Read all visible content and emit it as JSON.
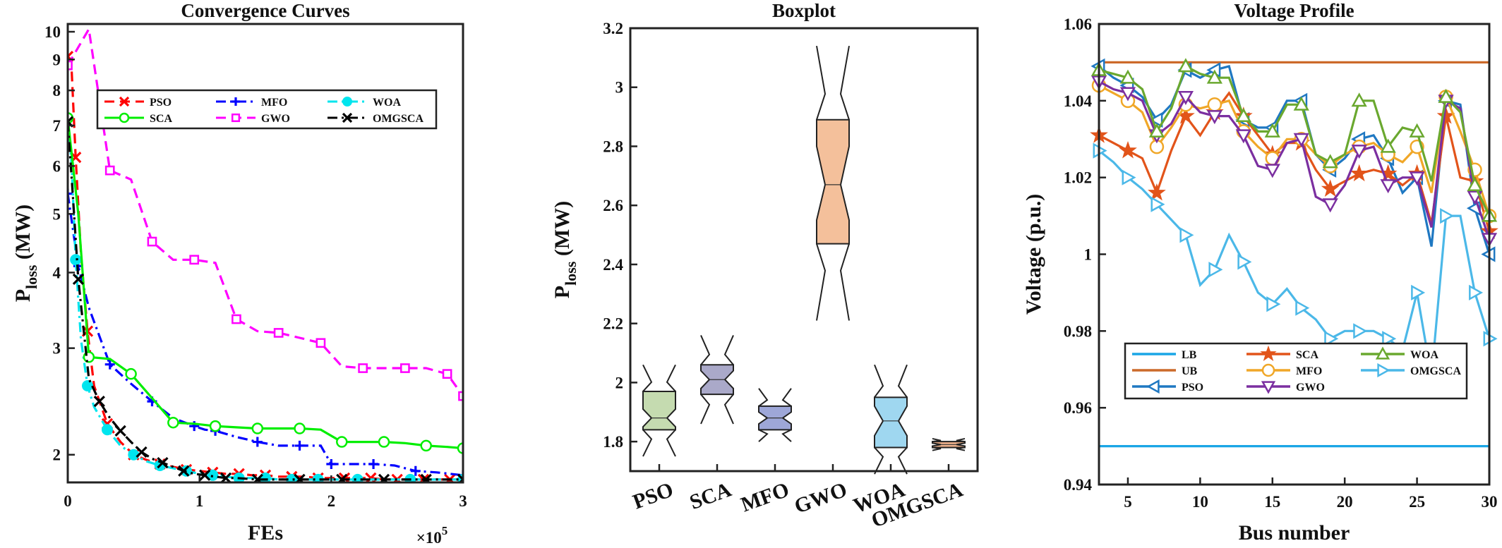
{
  "chart_data": [
    {
      "id": "conv",
      "type": "line",
      "title": "Convergence Curves",
      "xlabel": "FEs",
      "ylabel_main": "P",
      "ylabel_sub": "loss",
      "ylabel_unit": " (MW)",
      "x_exponent_base": "×10",
      "x_exponent_power": "5",
      "yscale": "log",
      "xlim": [
        0,
        3
      ],
      "ylim": [
        1.8,
        10.3
      ],
      "xticks": [
        0,
        1,
        2,
        3
      ],
      "xtick_labels": [
        "0",
        "1",
        "2",
        "3"
      ],
      "yticks": [
        2,
        3,
        4,
        5,
        6,
        7,
        8,
        9,
        10
      ],
      "ytick_labels": [
        "2",
        "3",
        "4",
        "5",
        "6",
        "7",
        "8",
        "9",
        "10"
      ],
      "legend_position": "top",
      "series": [
        {
          "name": "PSO",
          "color": "#ff0000",
          "dash": "dash",
          "marker": "x",
          "x": [
            0,
            0.03,
            0.06,
            0.1,
            0.15,
            0.2,
            0.3,
            0.4,
            0.5,
            0.6,
            0.7,
            0.8,
            0.9,
            1.0,
            1.1,
            1.2,
            1.3,
            1.4,
            1.5,
            1.6,
            1.7,
            1.8,
            1.9,
            2.0,
            2.1,
            2.2,
            2.3,
            2.4,
            2.5,
            2.6,
            2.7,
            2.8,
            2.9,
            3.0
          ],
          "y": [
            9.1,
            8.6,
            6.2,
            4.3,
            3.2,
            2.6,
            2.25,
            2.1,
            2.0,
            1.96,
            1.93,
            1.91,
            1.89,
            1.88,
            1.87,
            1.86,
            1.86,
            1.85,
            1.85,
            1.84,
            1.84,
            1.84,
            1.83,
            1.83,
            1.83,
            1.83,
            1.83,
            1.82,
            1.82,
            1.82,
            1.82,
            1.82,
            1.82,
            1.82
          ]
        },
        {
          "name": "MFO",
          "color": "#0000ff",
          "dash": "dashdot",
          "marker": "plus",
          "x": [
            0,
            0.04,
            0.08,
            0.16,
            0.32,
            0.48,
            0.64,
            0.8,
            0.96,
            1.04,
            1.12,
            1.28,
            1.44,
            1.6,
            1.76,
            1.92,
            2.0,
            2.16,
            2.32,
            2.48,
            2.64,
            2.8,
            3.0
          ],
          "y": [
            5.4,
            4.7,
            4.1,
            3.5,
            2.82,
            2.62,
            2.45,
            2.3,
            2.23,
            2.2,
            2.19,
            2.14,
            2.1,
            2.07,
            2.07,
            2.07,
            1.93,
            1.93,
            1.93,
            1.92,
            1.88,
            1.87,
            1.85
          ]
        },
        {
          "name": "WOA",
          "color": "#00e5ee",
          "dash": "dashdot",
          "marker": "circle",
          "x": [
            0,
            0.03,
            0.06,
            0.1,
            0.15,
            0.2,
            0.3,
            0.4,
            0.5,
            0.6,
            0.7,
            0.8,
            0.9,
            1.0,
            1.1,
            1.2,
            1.3,
            1.4,
            1.5,
            1.6,
            1.7,
            1.8,
            1.9,
            2.0,
            2.2,
            2.4,
            2.6,
            2.8,
            3.0
          ],
          "y": [
            7.2,
            6.0,
            4.2,
            3.1,
            2.6,
            2.4,
            2.2,
            2.07,
            2.0,
            1.95,
            1.92,
            1.9,
            1.88,
            1.86,
            1.85,
            1.84,
            1.83,
            1.83,
            1.83,
            1.82,
            1.82,
            1.82,
            1.82,
            1.82,
            1.82,
            1.82,
            1.82,
            1.82,
            1.82
          ]
        },
        {
          "name": "SCA",
          "color": "#00ee00",
          "dash": "solid",
          "marker": "circle",
          "x": [
            0,
            0.08,
            0.16,
            0.32,
            0.48,
            0.64,
            0.8,
            0.96,
            1.12,
            1.28,
            1.44,
            1.6,
            1.76,
            1.92,
            2.08,
            2.24,
            2.4,
            2.56,
            2.72,
            2.88,
            3.0
          ],
          "y": [
            7.2,
            5.0,
            2.9,
            2.88,
            2.72,
            2.48,
            2.26,
            2.25,
            2.23,
            2.22,
            2.21,
            2.21,
            2.21,
            2.2,
            2.1,
            2.1,
            2.1,
            2.09,
            2.07,
            2.06,
            2.05
          ]
        },
        {
          "name": "GWO",
          "color": "#ff00ff",
          "dash": "dash",
          "marker": "square",
          "x": [
            0,
            0.16,
            0.32,
            0.48,
            0.64,
            0.8,
            0.96,
            1.12,
            1.28,
            1.44,
            1.6,
            1.76,
            1.92,
            2.08,
            2.24,
            2.4,
            2.56,
            2.72,
            2.88,
            3.0
          ],
          "y": [
            8.8,
            10.1,
            5.9,
            5.7,
            4.5,
            4.2,
            4.2,
            4.15,
            3.35,
            3.2,
            3.18,
            3.12,
            3.06,
            2.8,
            2.78,
            2.78,
            2.78,
            2.78,
            2.72,
            2.5
          ]
        },
        {
          "name": "OMGSCA",
          "color": "#000000",
          "dash": "dashdot",
          "marker": "x",
          "x": [
            0,
            0.04,
            0.08,
            0.16,
            0.24,
            0.32,
            0.4,
            0.48,
            0.56,
            0.64,
            0.72,
            0.8,
            0.88,
            0.96,
            1.04,
            1.12,
            1.2,
            1.28,
            1.44,
            1.6,
            1.76,
            1.92,
            2.08,
            2.24,
            2.4,
            2.56,
            2.72,
            2.88,
            3.0
          ],
          "y": [
            7.1,
            5.3,
            3.9,
            2.67,
            2.45,
            2.3,
            2.19,
            2.1,
            2.02,
            1.97,
            1.94,
            1.91,
            1.88,
            1.86,
            1.85,
            1.84,
            1.83,
            1.83,
            1.82,
            1.82,
            1.82,
            1.82,
            1.82,
            1.82,
            1.82,
            1.82,
            1.82,
            1.82,
            1.82
          ]
        }
      ]
    },
    {
      "id": "box",
      "type": "box",
      "title": "Boxplot",
      "ylabel_main": "P",
      "ylabel_sub": "loss",
      "ylabel_unit": " (MW)",
      "ylim": [
        1.7,
        3.2
      ],
      "yticks": [
        1.8,
        2,
        2.2,
        2.4,
        2.6,
        2.8,
        3,
        3.2
      ],
      "ytick_labels": [
        "1.8",
        "2",
        "2.2",
        "2.4",
        "2.6",
        "2.8",
        "3",
        "3.2"
      ],
      "categories": [
        "PSO",
        "SCA",
        "MFO",
        "GWO",
        "WOA",
        "OMGSCA"
      ],
      "boxes": [
        {
          "name": "PSO",
          "color": "#c5dbb0",
          "lower_whisker": 1.75,
          "q1": 1.84,
          "median": 1.88,
          "q3": 1.97,
          "upper_whisker": 2.06,
          "notch_low": 1.85,
          "notch_high": 1.91
        },
        {
          "name": "SCA",
          "color": "#aaa9c9",
          "lower_whisker": 1.86,
          "q1": 1.96,
          "median": 2.01,
          "q3": 2.06,
          "upper_whisker": 2.16,
          "notch_low": 1.98,
          "notch_high": 2.04
        },
        {
          "name": "MFO",
          "color": "#9ea7d8",
          "lower_whisker": 1.8,
          "q1": 1.84,
          "median": 1.88,
          "q3": 1.92,
          "upper_whisker": 1.98,
          "notch_low": 1.86,
          "notch_high": 1.9
        },
        {
          "name": "GWO",
          "color": "#f4c09b",
          "lower_whisker": 2.21,
          "q1": 2.47,
          "median": 2.67,
          "q3": 2.89,
          "upper_whisker": 3.14,
          "notch_low": 2.55,
          "notch_high": 2.8
        },
        {
          "name": "WOA",
          "color": "#9fd7f0",
          "lower_whisker": 1.69,
          "q1": 1.78,
          "median": 1.87,
          "q3": 1.95,
          "upper_whisker": 2.06,
          "notch_low": 1.82,
          "notch_high": 1.92
        },
        {
          "name": "OMGSCA",
          "color": "#f0b38c",
          "lower_whisker": 1.77,
          "q1": 1.78,
          "median": 1.79,
          "q3": 1.8,
          "upper_whisker": 1.81,
          "notch_low": 1.785,
          "notch_high": 1.795
        }
      ]
    },
    {
      "id": "volt",
      "type": "line",
      "title": "Voltage Profile",
      "xlabel": "Bus number",
      "ylabel": "Voltage (p.u.)",
      "xlim": [
        3,
        30
      ],
      "ylim": [
        0.94,
        1.06
      ],
      "xticks": [
        5,
        10,
        15,
        20,
        25,
        30
      ],
      "xtick_labels": [
        "5",
        "10",
        "15",
        "20",
        "25",
        "30"
      ],
      "yticks": [
        0.94,
        0.96,
        0.98,
        1.0,
        1.02,
        1.04,
        1.06
      ],
      "ytick_labels": [
        "0.94",
        "0.96",
        "0.98",
        "1",
        "1.02",
        "1.04",
        "1.06"
      ],
      "legend_position": "bottom",
      "series": [
        {
          "name": "LB",
          "color": "#1aa6e6",
          "marker": "none",
          "x": [
            3,
            30
          ],
          "y": [
            0.95,
            0.95
          ]
        },
        {
          "name": "UB",
          "color": "#cc6a2a",
          "marker": "none",
          "x": [
            3,
            30
          ],
          "y": [
            1.05,
            1.05
          ]
        },
        {
          "name": "PSO",
          "color": "#1f78c2",
          "marker": "tri-left",
          "x": [
            3,
            4,
            5,
            6,
            7,
            8,
            9,
            10,
            11,
            12,
            13,
            14,
            15,
            16,
            17,
            18,
            19,
            20,
            21,
            22,
            23,
            24,
            25,
            26,
            27,
            28,
            29,
            30
          ],
          "y": [
            1.049,
            1.046,
            1.044,
            1.041,
            1.035,
            1.039,
            1.048,
            1.046,
            1.048,
            1.049,
            1.035,
            1.033,
            1.033,
            1.04,
            1.04,
            1.026,
            1.022,
            1.025,
            1.03,
            1.031,
            1.025,
            1.016,
            1.02,
            1.002,
            1.04,
            1.039,
            1.012,
            1.0
          ]
        },
        {
          "name": "SCA",
          "color": "#e2541a",
          "marker": "star",
          "x": [
            3,
            4,
            5,
            6,
            7,
            8,
            9,
            10,
            11,
            12,
            13,
            14,
            15,
            16,
            17,
            18,
            19,
            20,
            21,
            22,
            23,
            24,
            25,
            26,
            27,
            28,
            29,
            30
          ],
          "y": [
            1.031,
            1.029,
            1.027,
            1.025,
            1.016,
            1.027,
            1.036,
            1.031,
            1.037,
            1.042,
            1.036,
            1.031,
            1.026,
            1.029,
            1.029,
            1.022,
            1.017,
            1.019,
            1.021,
            1.022,
            1.021,
            1.018,
            1.021,
            1.008,
            1.036,
            1.02,
            1.019,
            1.006
          ]
        },
        {
          "name": "MFO",
          "color": "#f0a728",
          "marker": "circle",
          "x": [
            3,
            4,
            5,
            6,
            7,
            8,
            9,
            10,
            11,
            12,
            13,
            14,
            15,
            16,
            17,
            18,
            19,
            20,
            21,
            22,
            23,
            24,
            25,
            26,
            27,
            28,
            29,
            30
          ],
          "y": [
            1.044,
            1.042,
            1.04,
            1.037,
            1.028,
            1.033,
            1.039,
            1.038,
            1.039,
            1.04,
            1.032,
            1.028,
            1.025,
            1.03,
            1.03,
            1.026,
            1.023,
            1.026,
            1.028,
            1.029,
            1.026,
            1.024,
            1.028,
            1.016,
            1.041,
            1.032,
            1.022,
            1.01
          ]
        },
        {
          "name": "GWO",
          "color": "#7b2fa0",
          "marker": "tri-down",
          "x": [
            3,
            4,
            5,
            6,
            7,
            8,
            9,
            10,
            11,
            12,
            13,
            14,
            15,
            16,
            17,
            18,
            19,
            20,
            21,
            22,
            23,
            24,
            25,
            26,
            27,
            28,
            29,
            30
          ],
          "y": [
            1.045,
            1.043,
            1.042,
            1.04,
            1.031,
            1.034,
            1.041,
            1.037,
            1.036,
            1.036,
            1.031,
            1.023,
            1.022,
            1.029,
            1.03,
            1.015,
            1.013,
            1.018,
            1.027,
            1.028,
            1.018,
            1.02,
            1.02,
            1.007,
            1.04,
            1.038,
            1.015,
            1.004
          ]
        },
        {
          "name": "WOA",
          "color": "#6aa82f",
          "marker": "tri-up",
          "x": [
            3,
            4,
            5,
            6,
            7,
            8,
            9,
            10,
            11,
            12,
            13,
            14,
            15,
            16,
            17,
            18,
            19,
            20,
            21,
            22,
            23,
            24,
            25,
            26,
            27,
            28,
            29,
            30
          ],
          "y": [
            1.048,
            1.047,
            1.046,
            1.043,
            1.032,
            1.038,
            1.049,
            1.047,
            1.046,
            1.046,
            1.036,
            1.032,
            1.032,
            1.039,
            1.039,
            1.026,
            1.024,
            1.026,
            1.04,
            1.04,
            1.028,
            1.033,
            1.032,
            1.019,
            1.041,
            1.037,
            1.018,
            1.01
          ]
        },
        {
          "name": "OMGSCA",
          "color": "#4bb8e8",
          "marker": "tri-right",
          "x": [
            3,
            4,
            5,
            6,
            7,
            8,
            9,
            10,
            11,
            12,
            13,
            14,
            15,
            16,
            17,
            18,
            19,
            20,
            21,
            22,
            23,
            24,
            25,
            26,
            27,
            28,
            29,
            30
          ],
          "y": [
            1.027,
            1.024,
            1.02,
            1.017,
            1.013,
            1.009,
            1.005,
            0.992,
            0.996,
            1.005,
            0.998,
            0.99,
            0.987,
            0.991,
            0.986,
            0.983,
            0.978,
            0.98,
            0.98,
            0.98,
            0.978,
            0.975,
            0.99,
            0.968,
            1.01,
            1.01,
            0.99,
            0.978
          ]
        }
      ]
    }
  ]
}
